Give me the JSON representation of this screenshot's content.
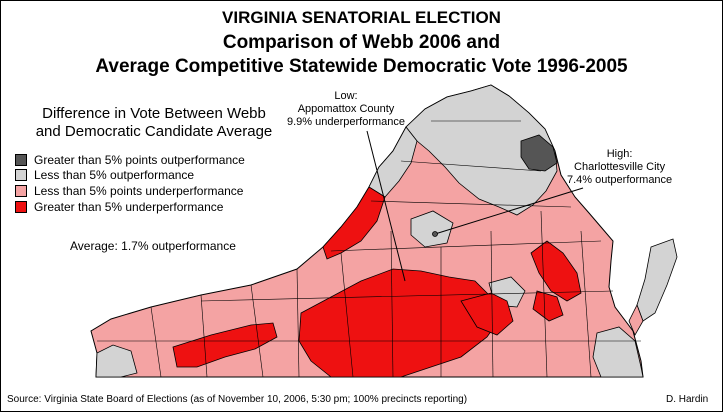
{
  "title": {
    "line1": "VIRGINIA SENATORIAL ELECTION",
    "line2": "Comparison of Webb 2006 and",
    "line3": "Average Competitive Statewide Democratic Vote 1996-2005"
  },
  "legend": {
    "heading_line1": "Difference in Vote Between Webb",
    "heading_line2": "and Democratic Candidate Average",
    "items": [
      {
        "label": "Greater than 5% points outperformance",
        "color": "#555555"
      },
      {
        "label": "Less than 5% outperformance",
        "color": "#d3d3d3"
      },
      {
        "label": "Less than 5% points underperformance",
        "color": "#f4a3a3"
      },
      {
        "label": "Greater than 5% underperformance",
        "color": "#ee1111"
      }
    ]
  },
  "average": "Average: 1.7% outperformance",
  "annotations": {
    "low": {
      "line1": "Low:",
      "line2": "Appomattox County",
      "line3": "9.9% underperformance"
    },
    "high": {
      "line1": "High:",
      "line2": "Charlottesville City",
      "line3": "7.4% outperformance"
    }
  },
  "source": "Source: Virginia State Board of Elections (as of November 10, 2006, 5:30 pm; 100% precincts reporting)",
  "author": "D. Hardin",
  "colors": {
    "dark_gray": "#555555",
    "light_gray": "#d3d3d3",
    "pink": "#f4a3a3",
    "red": "#ee1111",
    "county_border": "#000000"
  }
}
